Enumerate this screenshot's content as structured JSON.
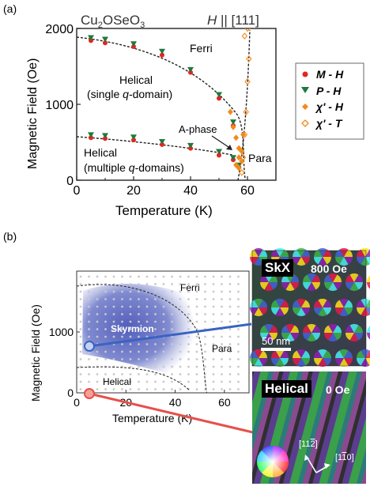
{
  "chart_data": [
    {
      "panel": "(a)",
      "type": "scatter",
      "title": "Cu2OSeO3",
      "title_sub": "2",
      "title_sub2": "3",
      "title_main": [
        "Cu",
        "OSeO"
      ],
      "field_direction": [
        "H",
        "|| [111]"
      ],
      "xlabel": "Temperature (K)",
      "ylabel": "Magnetic Field (Oe)",
      "xlim": [
        0,
        70
      ],
      "ylim": [
        0,
        2000
      ],
      "xticks": [
        0,
        20,
        40,
        60
      ],
      "yticks": [
        0,
        1000,
        2000
      ],
      "grid": false,
      "legend_position": "right",
      "region_labels": {
        "ferri": "Ferri",
        "helical_single_1": "Helical",
        "helical_single_2": "(single q-domain)",
        "helical_multi_1": "Helical",
        "helical_multi_2": "(multiple q-domains)",
        "a_phase": "A-phase",
        "para": "Para"
      },
      "series": [
        {
          "name": "M - H",
          "marker": "circle",
          "color": "#e8231e",
          "x": [
            5,
            10,
            20,
            30,
            40,
            50,
            55,
            5,
            10,
            20,
            30,
            40,
            50,
            55,
            57
          ],
          "y": [
            1840,
            1810,
            1760,
            1650,
            1420,
            1080,
            720,
            560,
            550,
            530,
            470,
            420,
            330,
            270,
            170
          ]
        },
        {
          "name": "P - H",
          "marker": "triangle-down",
          "color": "#1e7a3c",
          "x": [
            5,
            10,
            20,
            30,
            40,
            50,
            55,
            5,
            10,
            20,
            30,
            40,
            50,
            55,
            57
          ],
          "y": [
            1880,
            1860,
            1800,
            1700,
            1460,
            1130,
            770,
            600,
            590,
            570,
            510,
            460,
            380,
            300,
            200
          ]
        },
        {
          "name": "χ' - H",
          "marker": "diamond",
          "color": "#f28a1a",
          "x": [
            54,
            55,
            56,
            57,
            57,
            58,
            58.5,
            56,
            57,
            58
          ],
          "y": [
            900,
            700,
            560,
            420,
            300,
            250,
            600,
            200,
            160,
            380
          ]
        },
        {
          "name": "χ' - T",
          "marker": "diamond-open",
          "color": "#f28a1a",
          "x": [
            58,
            58.5,
            59,
            59.5,
            60,
            60.5,
            59,
            60
          ],
          "y": [
            100,
            300,
            600,
            900,
            1300,
            1600,
            1900,
            2000
          ]
        }
      ]
    },
    {
      "panel": "(b)",
      "type": "scatter",
      "xlabel": "Temperature (K)",
      "ylabel": "Magnetic Field (Oe)",
      "xlim": [
        0,
        70
      ],
      "ylim": [
        0,
        2000
      ],
      "xticks": [
        0,
        20,
        40,
        60
      ],
      "yticks": [
        0,
        1000
      ],
      "region_labels": {
        "ferri": "Ferri",
        "skyrmion": "Skyrmion",
        "para": "Para",
        "helical": "Helical"
      },
      "selected_points": [
        {
          "name": "SkX",
          "x": 5,
          "y": 800,
          "color": "#3a63c2"
        },
        {
          "name": "Helical",
          "x": 5,
          "y": 0,
          "color": "#e6504a"
        }
      ]
    }
  ],
  "legend": [
    "M - H",
    "P - H",
    "χ' - H",
    "χ' - T"
  ],
  "images": {
    "skx": {
      "label": "SkX",
      "field": "800 Oe",
      "scalebar": "50 nm"
    },
    "helical": {
      "label": "Helical",
      "field": "0 Oe",
      "dir1": "[11̅₂]",
      "dir1_main": "[11",
      "dir1_bar": "2",
      "dir1_end": "]",
      "dir2_main": "[1",
      "dir2_bar": "1",
      "dir2_end": "0]"
    }
  },
  "colors": {
    "red": "#e8231e",
    "green": "#1e7a3c",
    "orange": "#f28a1a",
    "blue": "#3a63c2",
    "salmon": "#e6504a"
  }
}
